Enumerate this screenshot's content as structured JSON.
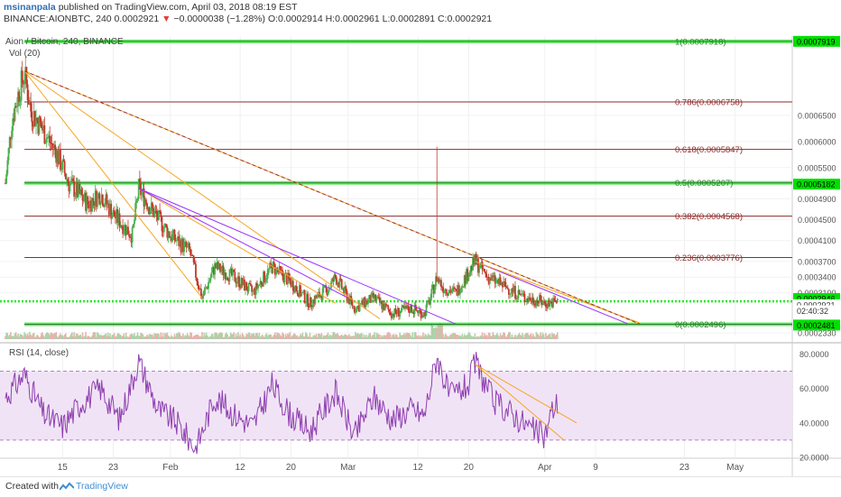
{
  "header": {
    "author": "msinanpala",
    "published_text": "published on TradingView.com, April 03, 2018 08:19 EST",
    "symbol": "BINANCE:AIONBTC, 240",
    "last_price": "0.0002921",
    "change_arrow": "▼",
    "change_text": "−0.0000038 (−1.28%)",
    "ohlc": "O:0.0002914 H:0.0002961 L:0.0002891 C:0.0002921"
  },
  "chart_title": "Aion / Bitcoin, 240, BINANCE",
  "volume_label": "Vol (20)",
  "rsi_label": "RSI (14, close)",
  "price_axis_ticks": [
    "0.0006500",
    "0.0006000",
    "0.0005500",
    "0.0004900",
    "0.0004500",
    "0.0004100",
    "0.0003700",
    "0.0003400",
    "0.0003100",
    "0.0002330"
  ],
  "price_axis_badges": {
    "fib_top": "0.0007919",
    "fib_mid": "0.0005182",
    "last": "0.0002946",
    "current": "0.0002921",
    "countdown": "02:40:32",
    "low": "0.0002481"
  },
  "fib_levels": [
    {
      "ratio": "1",
      "label": "1(0.0007918)",
      "price": 0.0007918,
      "color": "#2e7d32"
    },
    {
      "ratio": "0.786",
      "label": "0.786(0.0006758)",
      "price": 0.0006758,
      "color": "#8e2b2b"
    },
    {
      "ratio": "0.618",
      "label": "0.618(0.0005847)",
      "price": 0.0005847,
      "color": "#8e2b2b"
    },
    {
      "ratio": "0.5",
      "label": "0.5(0.0005207)",
      "price": 0.0005207,
      "color": "#2e7d32"
    },
    {
      "ratio": "0.382",
      "label": "0.382(0.0004568)",
      "price": 0.0004568,
      "color": "#8e2b2b"
    },
    {
      "ratio": "0.236",
      "label": "0.236(0.0003776)",
      "price": 0.0003776,
      "color": "#8e2b2b"
    },
    {
      "ratio": "0",
      "label": "0(0.0002496)",
      "price": 0.0002496,
      "color": "#2e7d32"
    }
  ],
  "rsi_axis_ticks": [
    "80.0000",
    "60.0000",
    "40.0000",
    "20.0000"
  ],
  "x_axis_ticks": [
    "15",
    "23",
    "Feb",
    "12",
    "20",
    "Mar",
    "12",
    "20",
    "Apr",
    "9",
    "23",
    "May"
  ],
  "colors": {
    "up": "#4caf50",
    "down": "#c0392b",
    "fib_green_band": "#00e000",
    "trend_orange": "#f5a623",
    "trend_purple": "#9b30ff",
    "trend_dashed": "#9c3040",
    "rsi_line": "#8e3fb0",
    "rsi_band": "#f1e3f6"
  },
  "footer": {
    "created_with": "Created with",
    "brand": "TradingView"
  },
  "chart_data": {
    "type": "candlestick",
    "timeframe": "240",
    "x_range": [
      "2018-01-06",
      "2018-05-10"
    ],
    "ylim": [
      0.000228,
      0.000802
    ],
    "close_path": [
      {
        "date": "2018-01-06",
        "close": 0.00052
      },
      {
        "date": "2018-01-07",
        "close": 0.00064
      },
      {
        "date": "2018-01-08",
        "close": 0.00069
      },
      {
        "date": "2018-01-09",
        "close": 0.00073
      },
      {
        "date": "2018-01-10",
        "close": 0.00066
      },
      {
        "date": "2018-01-12",
        "close": 0.00062
      },
      {
        "date": "2018-01-14",
        "close": 0.00058
      },
      {
        "date": "2018-01-16",
        "close": 0.00052
      },
      {
        "date": "2018-01-19",
        "close": 0.00048
      },
      {
        "date": "2018-01-21",
        "close": 0.0005
      },
      {
        "date": "2018-01-23",
        "close": 0.00046
      },
      {
        "date": "2018-01-26",
        "close": 0.00042
      },
      {
        "date": "2018-01-27",
        "close": 0.00051
      },
      {
        "date": "2018-01-29",
        "close": 0.00047
      },
      {
        "date": "2018-02-01",
        "close": 0.00042
      },
      {
        "date": "2018-02-04",
        "close": 0.00039
      },
      {
        "date": "2018-02-06",
        "close": 0.0003
      },
      {
        "date": "2018-02-08",
        "close": 0.00036
      },
      {
        "date": "2018-02-11",
        "close": 0.00034
      },
      {
        "date": "2018-02-14",
        "close": 0.00031
      },
      {
        "date": "2018-02-17",
        "close": 0.00036
      },
      {
        "date": "2018-02-20",
        "close": 0.00033
      },
      {
        "date": "2018-02-23",
        "close": 0.00029
      },
      {
        "date": "2018-02-26",
        "close": 0.00032
      },
      {
        "date": "2018-02-27",
        "close": 0.00034
      },
      {
        "date": "2018-03-02",
        "close": 0.00028
      },
      {
        "date": "2018-03-05",
        "close": 0.0003
      },
      {
        "date": "2018-03-08",
        "close": 0.00027
      },
      {
        "date": "2018-03-11",
        "close": 0.00028
      },
      {
        "date": "2018-03-13",
        "close": 0.00027
      },
      {
        "date": "2018-03-14",
        "close": 0.0003
      },
      {
        "date": "2018-03-15",
        "close": 0.00034
      },
      {
        "date": "2018-03-16",
        "close": 0.00032
      },
      {
        "date": "2018-03-18",
        "close": 0.00031
      },
      {
        "date": "2018-03-20",
        "close": 0.00035
      },
      {
        "date": "2018-03-21",
        "close": 0.00037
      },
      {
        "date": "2018-03-23",
        "close": 0.00034
      },
      {
        "date": "2018-03-26",
        "close": 0.00032
      },
      {
        "date": "2018-03-29",
        "close": 0.0003
      },
      {
        "date": "2018-03-31",
        "close": 0.000295
      },
      {
        "date": "2018-04-01",
        "close": 0.00029
      },
      {
        "date": "2018-04-03",
        "close": 0.000292
      }
    ],
    "notable_spike": {
      "date": "2018-03-15",
      "high": 0.00059
    },
    "trendlines": [
      {
        "style": "orange",
        "from": {
          "date": "2018-01-09",
          "price": 0.000735
        },
        "to": {
          "date": "2018-04-16",
          "price": 0.00025
        }
      },
      {
        "style": "orange",
        "from": {
          "date": "2018-01-09",
          "price": 0.000735
        },
        "to": {
          "date": "2018-03-06",
          "price": 0.00026
        }
      },
      {
        "style": "orange",
        "from": {
          "date": "2018-01-09",
          "price": 0.000735
        },
        "to": {
          "date": "2018-02-06",
          "price": 0.0003
        }
      },
      {
        "style": "orange",
        "from": {
          "date": "2018-01-27",
          "price": 0.00051
        },
        "to": {
          "date": "2018-02-27",
          "price": 0.00029
        }
      },
      {
        "style": "purple",
        "from": {
          "date": "2018-01-27",
          "price": 0.00051
        },
        "to": {
          "date": "2018-03-18",
          "price": 0.00025
        }
      },
      {
        "style": "purple",
        "from": {
          "date": "2018-01-27",
          "price": 0.00051
        },
        "to": {
          "date": "2018-03-01",
          "price": 0.0003
        }
      },
      {
        "style": "purple",
        "from": {
          "date": "2018-03-21",
          "price": 0.00037
        },
        "to": {
          "date": "2018-04-14",
          "price": 0.000251
        }
      },
      {
        "style": "orange",
        "from": {
          "date": "2018-03-21",
          "price": 0.00037
        },
        "to": {
          "date": "2018-04-16",
          "price": 0.000252
        }
      },
      {
        "style": "dashed",
        "from": {
          "date": "2018-01-09",
          "price": 0.000735
        },
        "to": {
          "date": "2018-04-16",
          "price": 0.00025
        }
      }
    ],
    "rsi": {
      "ylim": [
        20,
        86
      ],
      "overbought": 70,
      "oversold": 30,
      "values": [
        {
          "date": "2018-01-06",
          "v": 55
        },
        {
          "date": "2018-01-09",
          "v": 68
        },
        {
          "date": "2018-01-12",
          "v": 45
        },
        {
          "date": "2018-01-15",
          "v": 38
        },
        {
          "date": "2018-01-18",
          "v": 52
        },
        {
          "date": "2018-01-21",
          "v": 60
        },
        {
          "date": "2018-01-24",
          "v": 42
        },
        {
          "date": "2018-01-27",
          "v": 76
        },
        {
          "date": "2018-01-30",
          "v": 48
        },
        {
          "date": "2018-02-02",
          "v": 40
        },
        {
          "date": "2018-02-05",
          "v": 25
        },
        {
          "date": "2018-02-08",
          "v": 55
        },
        {
          "date": "2018-02-11",
          "v": 45
        },
        {
          "date": "2018-02-14",
          "v": 38
        },
        {
          "date": "2018-02-17",
          "v": 62
        },
        {
          "date": "2018-02-20",
          "v": 44
        },
        {
          "date": "2018-02-23",
          "v": 35
        },
        {
          "date": "2018-02-27",
          "v": 58
        },
        {
          "date": "2018-03-02",
          "v": 32
        },
        {
          "date": "2018-03-05",
          "v": 55
        },
        {
          "date": "2018-03-08",
          "v": 42
        },
        {
          "date": "2018-03-11",
          "v": 48
        },
        {
          "date": "2018-03-13",
          "v": 44
        },
        {
          "date": "2018-03-15",
          "v": 79
        },
        {
          "date": "2018-03-17",
          "v": 55
        },
        {
          "date": "2018-03-20",
          "v": 62
        },
        {
          "date": "2018-03-21",
          "v": 75
        },
        {
          "date": "2018-03-24",
          "v": 52
        },
        {
          "date": "2018-03-27",
          "v": 45
        },
        {
          "date": "2018-03-30",
          "v": 36
        },
        {
          "date": "2018-04-01",
          "v": 32
        },
        {
          "date": "2018-04-02",
          "v": 46
        },
        {
          "date": "2018-04-03",
          "v": 52
        }
      ],
      "trendlines": [
        {
          "from": {
            "date": "2018-03-21",
            "v": 74
          },
          "to": {
            "date": "2018-04-04",
            "v": 30
          }
        },
        {
          "from": {
            "date": "2018-03-21",
            "v": 74
          },
          "to": {
            "date": "2018-04-06",
            "v": 40
          }
        }
      ]
    }
  }
}
